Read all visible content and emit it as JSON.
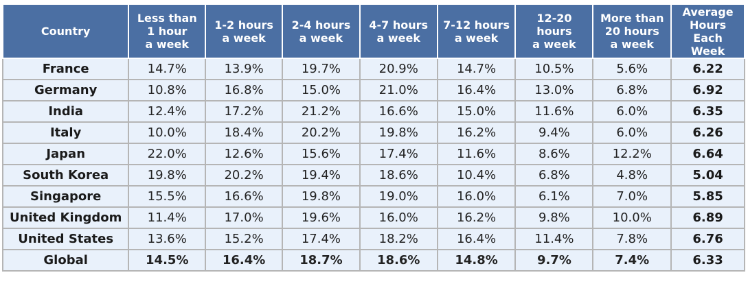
{
  "table": {
    "headers": [
      "Country",
      "Less than\n1 hour\na week",
      "1-2 hours\na week",
      "2-4 hours\na week",
      "4-7 hours\na week",
      "7-12 hours\na week",
      "12-20 hours\na week",
      "More than\n20 hours\na week",
      "Average\nHours Each\nWeek"
    ],
    "rows": [
      [
        "France",
        "14.7%",
        "13.9%",
        "19.7%",
        "20.9%",
        "14.7%",
        "10.5%",
        "5.6%",
        "6.22"
      ],
      [
        "Germany",
        "10.8%",
        "16.8%",
        "15.0%",
        "21.0%",
        "16.4%",
        "13.0%",
        "6.8%",
        "6.92"
      ],
      [
        "India",
        "12.4%",
        "17.2%",
        "21.2%",
        "16.6%",
        "15.0%",
        "11.6%",
        "6.0%",
        "6.35"
      ],
      [
        "Italy",
        "10.0%",
        "18.4%",
        "20.2%",
        "19.8%",
        "16.2%",
        "9.4%",
        "6.0%",
        "6.26"
      ],
      [
        "Japan",
        "22.0%",
        "12.6%",
        "15.6%",
        "17.4%",
        "11.6%",
        "8.6%",
        "12.2%",
        "6.64"
      ],
      [
        "South Korea",
        "19.8%",
        "20.2%",
        "19.4%",
        "18.6%",
        "10.4%",
        "6.8%",
        "4.8%",
        "5.04"
      ],
      [
        "Singapore",
        "15.5%",
        "16.6%",
        "19.8%",
        "19.0%",
        "16.0%",
        "6.1%",
        "7.0%",
        "5.85"
      ],
      [
        "United Kingdom",
        "11.4%",
        "17.0%",
        "19.6%",
        "16.0%",
        "16.2%",
        "9.8%",
        "10.0%",
        "6.89"
      ],
      [
        "United States",
        "13.6%",
        "15.2%",
        "17.4%",
        "18.2%",
        "16.4%",
        "11.4%",
        "7.8%",
        "6.76"
      ],
      [
        "Global",
        "14.5%",
        "16.4%",
        "18.7%",
        "18.6%",
        "14.8%",
        "9.7%",
        "7.4%",
        "6.33"
      ]
    ]
  },
  "colors": {
    "header_bg": "#4b6fa3",
    "cell_bg": "#e9f1fb",
    "border": "#b5b5b5"
  }
}
